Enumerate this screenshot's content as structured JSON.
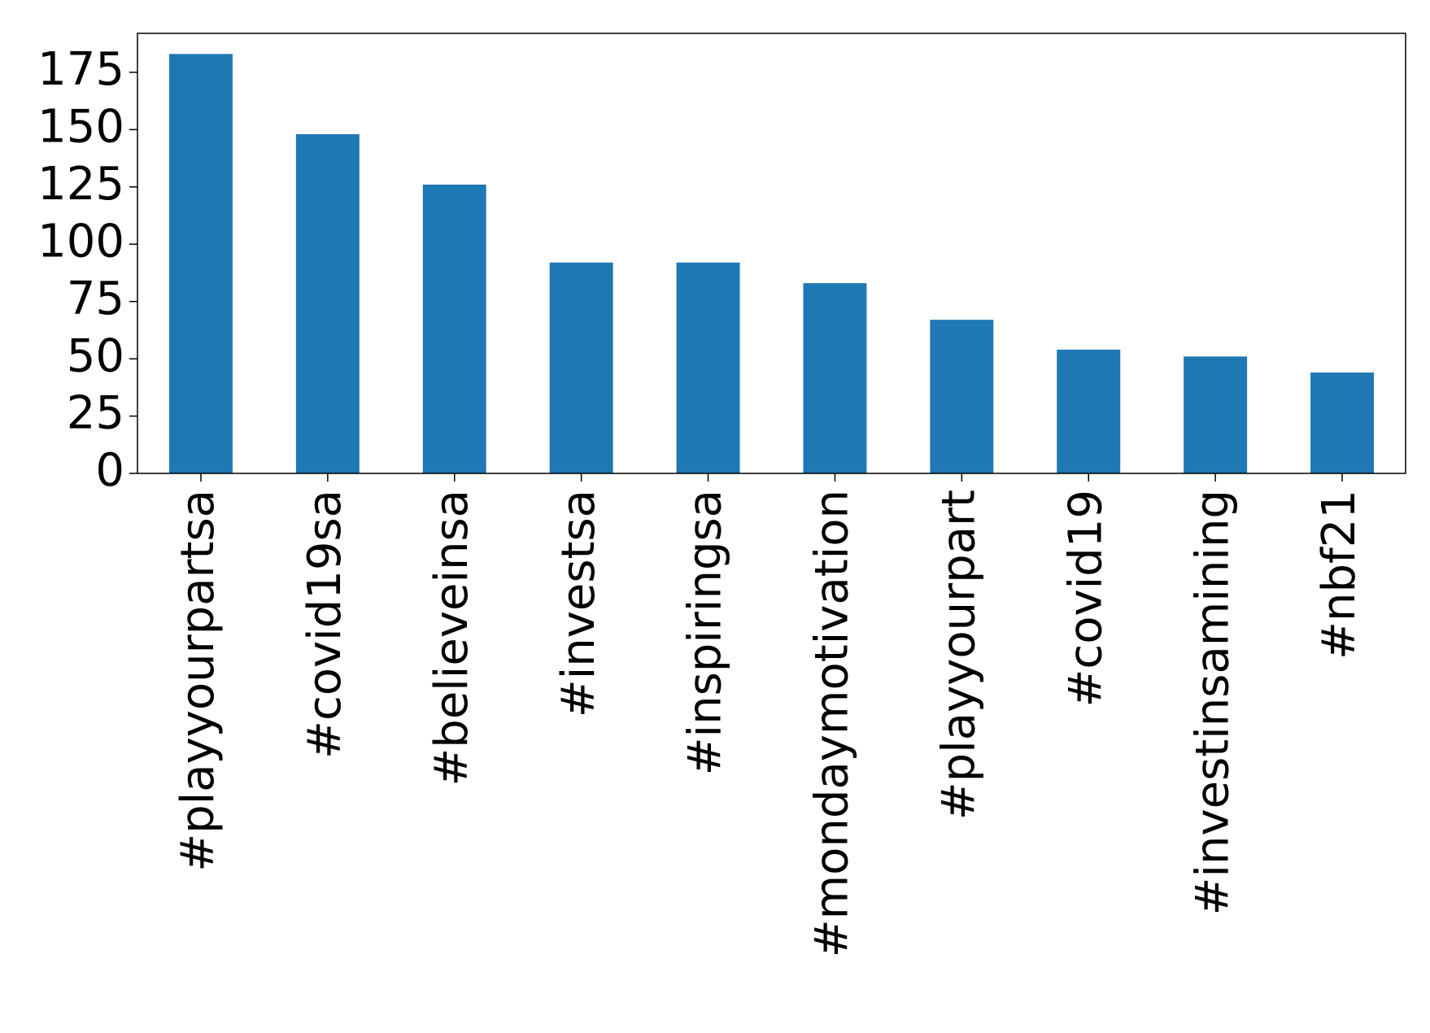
{
  "chart_data": {
    "type": "bar",
    "categories": [
      "#playyourpartsa",
      "#covid19sa",
      "#believeinsa",
      "#investsa",
      "#inspiringsa",
      "#mondaymotivation",
      "#playyourpart",
      "#covid19",
      "#investinsamining",
      "#nbf21"
    ],
    "values": [
      183,
      148,
      126,
      92,
      92,
      83,
      67,
      54,
      51,
      44
    ],
    "color": "#1f77b4",
    "ylim": [
      0,
      192
    ],
    "yticks": [
      0,
      25,
      50,
      75,
      100,
      125,
      150,
      175
    ],
    "grid": false
  }
}
